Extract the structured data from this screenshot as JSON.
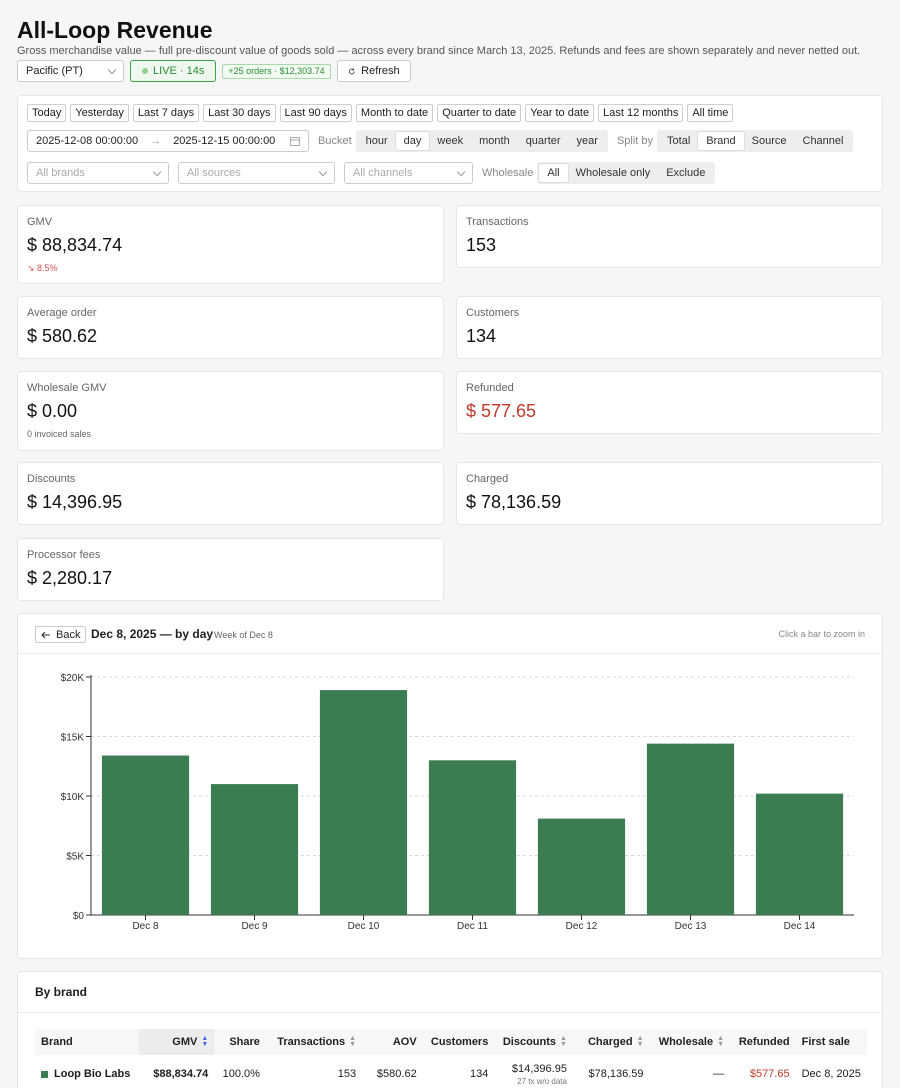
{
  "header": {
    "title": "All-Loop Revenue",
    "subtitle": "Gross merchandise value — full pre-discount value of goods sold — across every brand since March 13, 2025. Refunds and fees are shown separately and never netted out."
  },
  "controls": {
    "timezone": "Pacific (PT)",
    "live": "LIVE · 14s",
    "orders_badge": "+25 orders · $12,303.74",
    "refresh": "Refresh"
  },
  "filters": {
    "quick_ranges": [
      "Today",
      "Yesterday",
      "Last 7 days",
      "Last 30 days",
      "Last 90 days",
      "Month to date",
      "Quarter to date",
      "Year to date",
      "Last 12 months",
      "All time"
    ],
    "date_from": "2025-12-08 00:00:00",
    "date_to": "2025-12-15 00:00:00",
    "bucket_label": "Bucket",
    "buckets": [
      "hour",
      "day",
      "week",
      "month",
      "quarter",
      "year"
    ],
    "bucket_selected": "day",
    "split_label": "Split by",
    "splits": [
      "Total",
      "Brand",
      "Source",
      "Channel"
    ],
    "split_selected": "Brand",
    "brands_placeholder": "All brands",
    "sources_placeholder": "All sources",
    "channels_placeholder": "All channels",
    "wholesale_label": "Wholesale",
    "wholesale_options": [
      "All",
      "Wholesale only",
      "Exclude"
    ],
    "wholesale_selected": "All"
  },
  "metrics": {
    "gmv": {
      "label": "GMV",
      "value": "$ 88,834.74",
      "delta": "↘ 8.5%"
    },
    "transactions": {
      "label": "Transactions",
      "value": "153"
    },
    "aov": {
      "label": "Average order",
      "value": "$ 580.62"
    },
    "customers": {
      "label": "Customers",
      "value": "134"
    },
    "wholesale": {
      "label": "Wholesale GMV",
      "value": "$ 0.00",
      "sub": "0 invoiced sales"
    },
    "refunded": {
      "label": "Refunded",
      "value": "$ 577.65"
    },
    "discounts": {
      "label": "Discounts",
      "value": "$ 14,396.95"
    },
    "charged": {
      "label": "Charged",
      "value": "$ 78,136.59"
    },
    "fees": {
      "label": "Processor fees",
      "value": "$ 2,280.17"
    }
  },
  "chart_header": {
    "back": "Back",
    "title": "Dec 8, 2025 — by day",
    "subtitle": "Week of Dec 8",
    "hint": "Click a bar to zoom in"
  },
  "chart_data": {
    "type": "bar",
    "categories": [
      "Dec 8",
      "Dec 9",
      "Dec 10",
      "Dec 11",
      "Dec 12",
      "Dec 13",
      "Dec 14"
    ],
    "values": [
      13400,
      11000,
      18900,
      13000,
      8100,
      14400,
      10200
    ],
    "yticks": [
      0,
      5000,
      10000,
      15000,
      20000
    ],
    "ytick_labels": [
      "$0",
      "$5K",
      "$10K",
      "$15K",
      "$20K"
    ],
    "ylim": [
      0,
      20000
    ],
    "grid": true,
    "color": "#3c7c52"
  },
  "table": {
    "title": "By brand",
    "columns": [
      "Brand",
      "GMV",
      "Share",
      "Transactions",
      "AOV",
      "Customers",
      "Discounts",
      "Charged",
      "Wholesale",
      "Refunded",
      "First sale"
    ],
    "rows": [
      {
        "brand": "Loop Bio Labs",
        "gmv": "$88,834.74",
        "share": "100.0%",
        "transactions": "153",
        "aov": "$580.62",
        "customers": "134",
        "discounts": "$14,396.95",
        "discounts_note": "27 tx w/o data",
        "charged": "$78,136.59",
        "wholesale": "—",
        "refunded": "$577.65",
        "first_sale": "Dec 8, 2025"
      }
    ]
  }
}
